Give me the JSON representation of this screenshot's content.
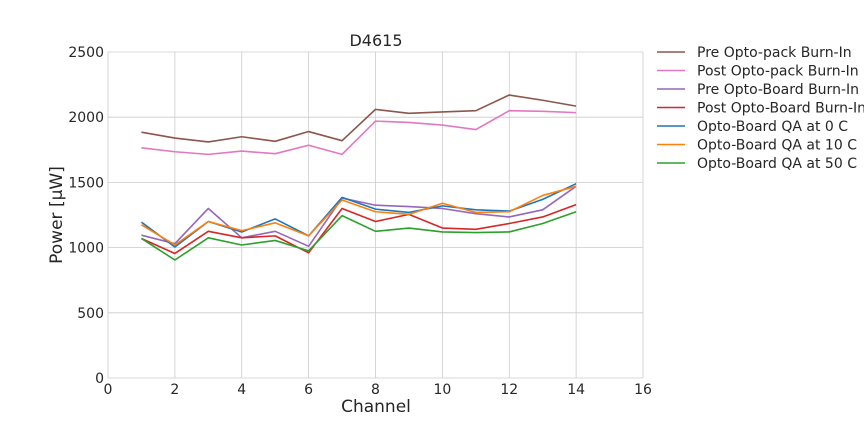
{
  "chart_data": {
    "type": "line",
    "title": "D4615",
    "xlabel": "Channel",
    "ylabel": "Power [μW]",
    "xlim": [
      0,
      16
    ],
    "ylim": [
      0,
      2500
    ],
    "xticks": [
      0,
      2,
      4,
      6,
      8,
      10,
      12,
      14,
      16
    ],
    "yticks": [
      0,
      500,
      1000,
      1500,
      2000,
      2500
    ],
    "grid": true,
    "legend_position": "outside-right-top",
    "x": [
      1,
      2,
      3,
      4,
      5,
      6,
      7,
      8,
      9,
      10,
      11,
      12,
      13,
      14
    ],
    "series": [
      {
        "name": "Pre Opto-pack Burn-In",
        "color": "#8c564b",
        "values": [
          1885,
          1840,
          1810,
          1850,
          1815,
          1890,
          1820,
          2060,
          2030,
          2040,
          2050,
          2170,
          2130,
          2085
        ]
      },
      {
        "name": "Post Opto-pack Burn-In",
        "color": "#e377c2",
        "values": [
          1765,
          1735,
          1715,
          1740,
          1720,
          1785,
          1715,
          1970,
          1960,
          1940,
          1905,
          2050,
          2045,
          2035
        ]
      },
      {
        "name": "Pre Opto-Board Burn-In",
        "color": "#9467bd",
        "values": [
          1095,
          1030,
          1300,
          1075,
          1125,
          1010,
          1380,
          1325,
          1315,
          1300,
          1260,
          1235,
          1290,
          1470
        ]
      },
      {
        "name": "Post Opto-Board Burn-In",
        "color": "#d62728",
        "values": [
          1070,
          955,
          1125,
          1075,
          1090,
          960,
          1300,
          1200,
          1255,
          1150,
          1140,
          1185,
          1235,
          1330
        ]
      },
      {
        "name": "Opto-Board QA at 0 C",
        "color": "#1f77b4",
        "values": [
          1195,
          1005,
          1200,
          1120,
          1220,
          1090,
          1385,
          1295,
          1270,
          1320,
          1290,
          1280,
          1370,
          1490
        ]
      },
      {
        "name": "Opto-Board QA at 10 C",
        "color": "#ff7f0e",
        "values": [
          1175,
          1020,
          1200,
          1130,
          1190,
          1090,
          1365,
          1275,
          1255,
          1340,
          1270,
          1275,
          1400,
          1470
        ]
      },
      {
        "name": "Opto-Board QA at 50 C",
        "color": "#2ca02c",
        "values": [
          1070,
          905,
          1075,
          1020,
          1055,
          975,
          1245,
          1125,
          1150,
          1120,
          1115,
          1120,
          1185,
          1275
        ]
      }
    ]
  }
}
